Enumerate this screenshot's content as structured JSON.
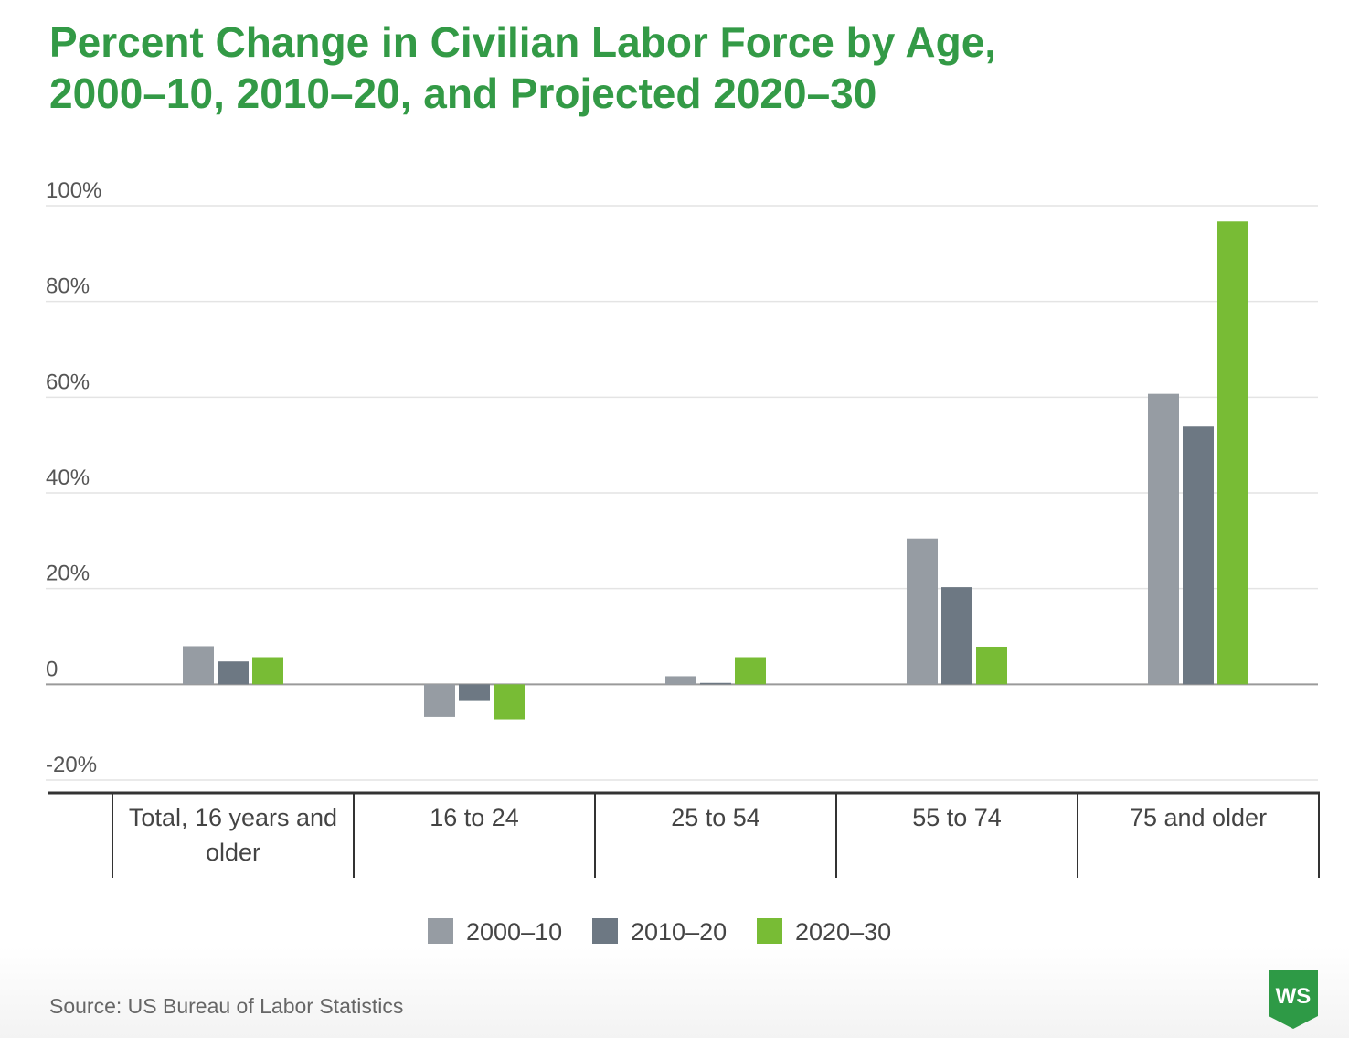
{
  "title_lines": [
    "Percent Change in Civilian Labor Force by Age,",
    "2000–10, 2010–20, and Projected 2020–30"
  ],
  "source": "Source: US Bureau of Labor Statistics",
  "logo_text": "WS",
  "colors": {
    "title": "#339a46",
    "logo": "#2e9a46",
    "grid": "#e4e4e4",
    "zero_line": "#9a9a9a",
    "axis": "#333333",
    "tick_text": "#555555",
    "category_text": "#444444"
  },
  "chart_data": {
    "type": "bar",
    "categories": [
      "Total, 16 years and older",
      "16 to 24",
      "25 to 54",
      "55 to 74",
      "75 and older"
    ],
    "series": [
      {
        "name": "2000–10",
        "color": "#969ca3",
        "values": [
          8.0,
          -6.8,
          1.7,
          30.5,
          60.7
        ]
      },
      {
        "name": "2010–20",
        "color": "#6d7883",
        "values": [
          4.8,
          -3.3,
          0.3,
          20.3,
          53.9
        ]
      },
      {
        "name": "2020–30",
        "color": "#78bc35",
        "values": [
          5.7,
          -7.3,
          5.7,
          7.9,
          96.7
        ]
      }
    ],
    "y_ticks": [
      100,
      80,
      60,
      40,
      20,
      0,
      -20
    ],
    "y_tick_labels": [
      "100%",
      "80%",
      "60%",
      "40%",
      "20%",
      "0",
      "-20%"
    ],
    "ylim": [
      -20,
      100
    ],
    "grid": true,
    "legend_position": "bottom-center"
  }
}
